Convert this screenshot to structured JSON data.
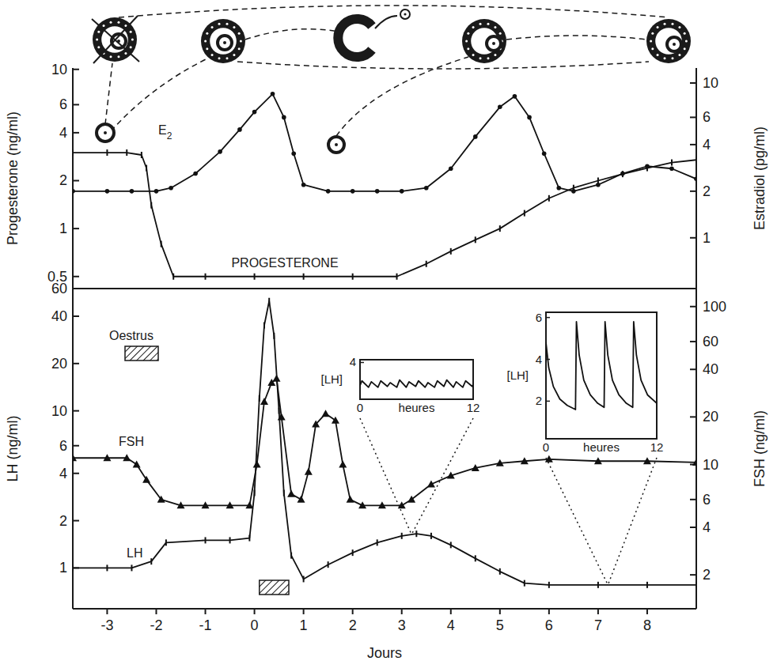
{
  "chart_data": [
    {
      "type": "line",
      "log": "y",
      "tick_labels": "y",
      "xlim": [
        -3.7,
        9
      ],
      "ylim": [
        0.42,
        10.2
      ],
      "yticks": [
        0.5,
        1,
        2,
        4,
        6,
        10
      ],
      "ylabel": "Progesterone (ng/ml)",
      "y2lim": [
        0.47,
        12.5
      ],
      "y2ticks": [
        1,
        2,
        4,
        6,
        10
      ],
      "y2label": "Estradiol (pg/ml)",
      "series": [
        {
          "name": "E2",
          "axis": "y2",
          "color": "#111111",
          "marker": "circle",
          "x": [
            -3.7,
            -3,
            -2.5,
            -2,
            -1.7,
            -1.2,
            -0.7,
            -0.3,
            0,
            0.37,
            0.6,
            0.8,
            1,
            1.5,
            2,
            2.5,
            3,
            3.5,
            4,
            4.5,
            5,
            5.3,
            5.6,
            5.9,
            6.2,
            6.5,
            7,
            7.5,
            8,
            8.5,
            9
          ],
          "values": [
            2,
            2,
            2,
            2,
            2.1,
            2.6,
            3.6,
            5,
            6.5,
            8.5,
            6,
            3.5,
            2.2,
            2,
            2,
            2,
            2,
            2.1,
            2.8,
            4.5,
            7,
            8.2,
            6,
            3.5,
            2.1,
            2,
            2.2,
            2.6,
            2.9,
            2.8,
            2.4
          ]
        },
        {
          "name": "PROGESTERONE",
          "color": "#111111",
          "marker": "tick",
          "x": [
            -3.7,
            -3,
            -2.6,
            -2.3,
            -2.2,
            -2.1,
            -1.9,
            -1.65,
            -1,
            0,
            1,
            2,
            2.9,
            3.5,
            4,
            4.5,
            5,
            5.5,
            6,
            6.5,
            7,
            7.5,
            8,
            8.5,
            9
          ],
          "values": [
            3,
            3,
            3,
            2.9,
            2.4,
            1.4,
            0.8,
            0.5,
            0.5,
            0.5,
            0.5,
            0.5,
            0.5,
            0.6,
            0.72,
            0.85,
            1,
            1.25,
            1.55,
            1.8,
            2,
            2.2,
            2.4,
            2.6,
            2.7
          ]
        }
      ]
    },
    {
      "type": "line",
      "log": "y",
      "xlim": [
        -3.7,
        9
      ],
      "xticks": [
        -3,
        -2,
        -1,
        0,
        1,
        2,
        3,
        4,
        5,
        6,
        7,
        8
      ],
      "xlabel": "Jours",
      "ylim": [
        0.55,
        60
      ],
      "yticks": [
        1,
        2,
        4,
        6,
        10,
        20,
        40,
        60
      ],
      "ylabel": "LH (ng/ml)",
      "y2lim": [
        1.22,
        130
      ],
      "y2ticks": [
        2,
        4,
        6,
        10,
        20,
        40,
        60,
        100
      ],
      "y2label": "FSH (ng/ml)",
      "oestrus": {
        "label": "Oestrus",
        "x": [
          0.1,
          0.7
        ]
      },
      "series": [
        {
          "name": "FSH",
          "axis": "y2",
          "color": "#111111",
          "marker": "triangle",
          "x": [
            -3.7,
            -3,
            -2.6,
            -2.4,
            -2.2,
            -1.9,
            -1.5,
            -1,
            -0.5,
            -0.1,
            0.05,
            0.2,
            0.35,
            0.45,
            0.55,
            0.75,
            0.95,
            1.1,
            1.25,
            1.45,
            1.65,
            1.8,
            1.95,
            2.2,
            2.6,
            3,
            3.2,
            3.6,
            4,
            4.5,
            5,
            5.5,
            6,
            7,
            8,
            9
          ],
          "values": [
            11,
            11,
            11,
            10,
            8,
            6,
            5.5,
            5.5,
            5.5,
            5.5,
            10,
            25,
            33,
            35,
            20,
            6.5,
            6,
            9,
            18,
            21,
            19,
            10,
            6,
            5.5,
            5.5,
            5.5,
            6,
            7.5,
            8.5,
            9.5,
            10.2,
            10.5,
            10.8,
            10.5,
            10.5,
            10.3
          ]
        },
        {
          "name": "LH",
          "color": "#111111",
          "marker": "tick",
          "x": [
            -3.7,
            -3,
            -2.5,
            -2.1,
            -1.8,
            -1,
            -0.5,
            -0.1,
            0,
            0.1,
            0.2,
            0.3,
            0.4,
            0.5,
            0.6,
            0.75,
            1,
            1.5,
            2,
            2.5,
            3,
            3.3,
            3.6,
            4,
            4.5,
            5,
            5.5,
            6,
            7,
            8,
            9
          ],
          "values": [
            1,
            1,
            1,
            1.1,
            1.45,
            1.5,
            1.5,
            1.55,
            3,
            12,
            35,
            50,
            30,
            10,
            3,
            1.2,
            0.85,
            1.05,
            1.25,
            1.45,
            1.6,
            1.65,
            1.6,
            1.4,
            1.15,
            0.95,
            0.8,
            0.78,
            0.78,
            0.78,
            0.78
          ]
        }
      ]
    },
    {
      "type": "line",
      "at_day": 3.2,
      "xlim": [
        0,
        12
      ],
      "xticks": [
        0,
        12
      ],
      "xlabel": "heures",
      "ylim": [
        0,
        4.3
      ],
      "yticks": [
        4
      ],
      "ylabel": "[LH]",
      "series": [
        {
          "color": "#111111",
          "x": [
            0,
            0.2,
            0.9,
            1.2,
            1.9,
            2.2,
            2.9,
            3.2,
            3.9,
            4.2,
            4.9,
            5.2,
            5.9,
            6.2,
            6.9,
            7.2,
            7.9,
            8.2,
            8.9,
            9.2,
            9.9,
            10.2,
            10.9,
            11.2,
            11.9,
            12
          ],
          "values": [
            1.5,
            2.0,
            1.3,
            1.9,
            1.3,
            2.0,
            1.4,
            1.8,
            1.3,
            2.1,
            1.3,
            1.9,
            1.4,
            2.0,
            1.3,
            1.8,
            1.3,
            2.0,
            1.4,
            2.1,
            1.3,
            1.9,
            1.3,
            2.0,
            1.4,
            1.6
          ]
        }
      ]
    },
    {
      "type": "line",
      "at_day": 7.2,
      "xlim": [
        0,
        12
      ],
      "xticks": [
        0,
        12
      ],
      "xlabel": "heures",
      "ylim": [
        0.2,
        6.25
      ],
      "yticks": [
        2,
        4,
        6
      ],
      "ylabel": "[LH]",
      "series": [
        {
          "color": "#111111",
          "x": [
            0,
            0.3,
            0.8,
            1.5,
            2.3,
            3.2,
            3.3,
            3.6,
            4.1,
            4.8,
            5.6,
            6.3,
            6.4,
            6.7,
            7.2,
            7.9,
            8.7,
            9.4,
            9.5,
            9.8,
            10.3,
            11,
            12
          ],
          "values": [
            4.8,
            3.6,
            2.7,
            2.1,
            1.8,
            1.6,
            5.8,
            4.2,
            3,
            2.3,
            1.9,
            1.7,
            5.8,
            4.2,
            3,
            2.3,
            1.9,
            1.7,
            5.8,
            4.2,
            3,
            2.3,
            1.9
          ]
        }
      ]
    }
  ]
}
